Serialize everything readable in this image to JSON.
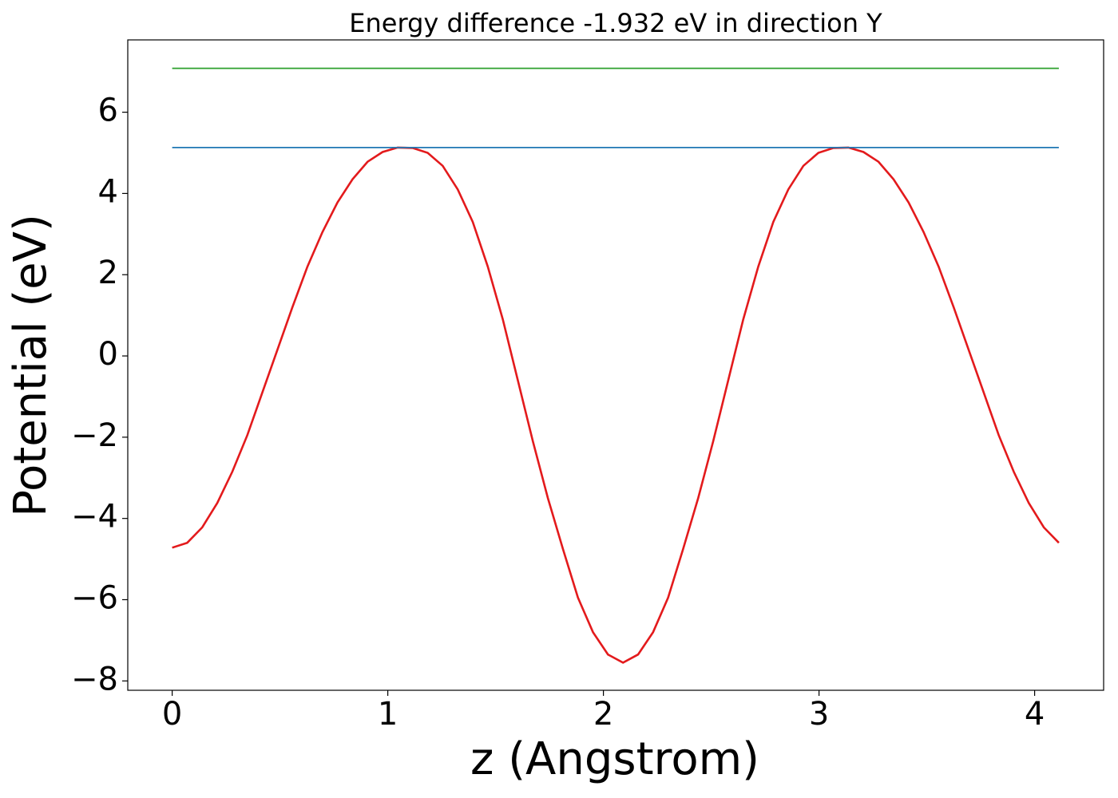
{
  "chart_data": {
    "type": "line",
    "title": "Energy difference -1.932 eV in direction Y",
    "x_label": "z (Angstrom)",
    "y_label": "Potential (eV)",
    "xlim": [
      -0.206,
      4.32
    ],
    "ylim": [
      -8.23,
      7.78
    ],
    "xticks": [
      0,
      1,
      2,
      3,
      4
    ],
    "yticks": [
      {
        "value": -8,
        "label": "−8"
      },
      {
        "value": -6,
        "label": "−6"
      },
      {
        "value": -4,
        "label": "−4"
      },
      {
        "value": -2,
        "label": "−2"
      },
      0,
      2,
      4,
      6
    ],
    "series": [
      {
        "color": "#e31a1c",
        "x": [
          0,
          0.0697,
          0.1394,
          0.2091,
          0.2788,
          0.3485,
          0.4182,
          0.4879,
          0.5576,
          0.6273,
          0.697,
          0.7667,
          0.8364,
          0.9061,
          0.9758,
          1.0455,
          1.1152,
          1.1849,
          1.2546,
          1.3243,
          1.394,
          1.4637,
          1.5334,
          1.6031,
          1.6728,
          1.7425,
          1.8122,
          1.8819,
          1.9516,
          2.0213,
          2.091,
          2.1607,
          2.2304,
          2.3001,
          2.3698,
          2.4395,
          2.5092,
          2.5789,
          2.6486,
          2.7183,
          2.788,
          2.8577,
          2.9274,
          2.9971,
          3.0668,
          3.1365,
          3.2062,
          3.2759,
          3.3456,
          3.4153,
          3.485,
          3.5547,
          3.6244,
          3.6941,
          3.7638,
          3.8335,
          3.9032,
          3.9729,
          4.0426,
          4.1123
        ],
        "values": [
          -4.72,
          -4.6,
          -4.22,
          -3.62,
          -2.85,
          -1.95,
          -0.9,
          0.15,
          1.2,
          2.2,
          3.05,
          3.78,
          4.35,
          4.78,
          5.02,
          5.13,
          5.12,
          5.0,
          4.68,
          4.1,
          3.3,
          2.2,
          0.9,
          -0.6,
          -2.1,
          -3.5,
          -4.75,
          -5.95,
          -6.8,
          -7.35,
          -7.55,
          -7.35,
          -6.8,
          -5.95,
          -4.75,
          -3.5,
          -2.1,
          -0.6,
          0.9,
          2.2,
          3.3,
          4.1,
          4.68,
          5.0,
          5.12,
          5.13,
          5.02,
          4.78,
          4.35,
          3.78,
          3.05,
          2.2,
          1.2,
          0.15,
          -0.9,
          -1.95,
          -2.85,
          -3.62,
          -4.22,
          -4.6
        ]
      },
      {
        "color": "#1f77b4",
        "x": [
          0,
          4.1123
        ],
        "values": [
          5.13,
          5.13
        ]
      },
      {
        "color": "#2ca02c",
        "x": [
          0,
          4.1123
        ],
        "values": [
          7.08,
          7.08
        ]
      }
    ]
  }
}
